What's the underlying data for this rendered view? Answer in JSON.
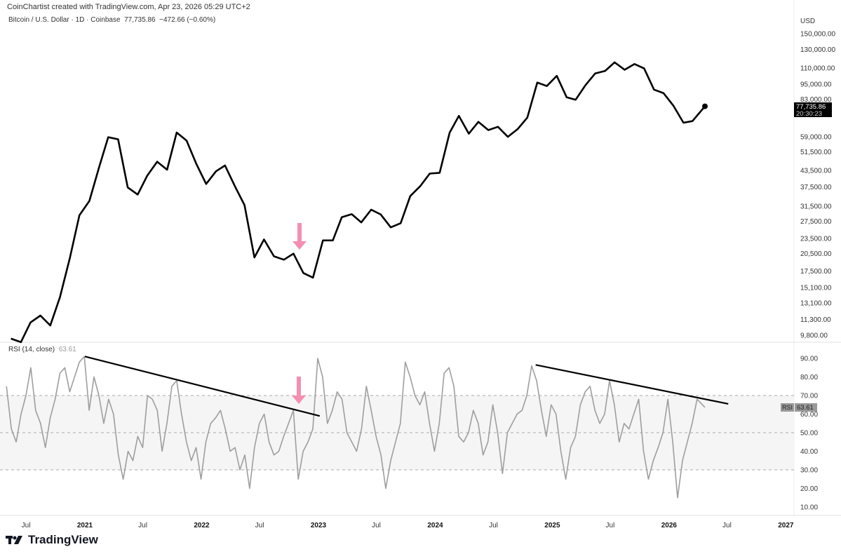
{
  "header": {
    "credit": "CoinChartist created with TradingView.com, Apr 23, 2026 05:29 UTC+2",
    "symbol": "Bitcoin / U.S. Dollar · 1D · Coinbase",
    "last": "77,735.86",
    "change": "−472.66 (−0.60%)"
  },
  "price_panel": {
    "currency": "USD",
    "last_label": "77,735.86",
    "countdown": "20:30:23"
  },
  "rsi_panel": {
    "title": "RSI (14, close)",
    "value": "63.61",
    "tag": "RSI"
  },
  "logo": "TradingView",
  "colors": {
    "price": "#000000",
    "rsi": "#9e9e9e",
    "arrow": "#f48fb1",
    "trendline": "#000000",
    "band": "#f5f5f5"
  },
  "chart_data": [
    {
      "type": "line",
      "title": "Bitcoin / U.S. Dollar · 1D · Coinbase",
      "y_scale": "log",
      "ylabel": "USD",
      "y_ticks": [
        "150,000.00",
        "130,000.00",
        "110,000.00",
        "95,000.00",
        "83,000.00",
        "59,000.00",
        "51,500.00",
        "43,500.00",
        "37,500.00",
        "31,500.00",
        "27,500.00",
        "23,500.00",
        "20,500.00",
        "17,500.00",
        "15,100.00",
        "13,100.00",
        "11,300.00",
        "9,800.00"
      ],
      "x_ticks": [
        "Jul",
        "2021",
        "Jul",
        "2022",
        "Jul",
        "2023",
        "Jul",
        "2024",
        "Jul",
        "2025",
        "Jul",
        "2026",
        "Jul",
        "2027"
      ],
      "x_start": "2020-05",
      "x_interval": "monthly",
      "values": [
        9500,
        9200,
        11000,
        11700,
        10700,
        13800,
        19700,
        29000,
        33000,
        45000,
        58800,
        57700,
        37300,
        35000,
        41500,
        47100,
        43800,
        61300,
        57000,
        46300,
        38500,
        43200,
        45500,
        37700,
        31800,
        19800,
        23300,
        20000,
        19400,
        20500,
        17200,
        16500,
        23100,
        23100,
        28500,
        29300,
        27200,
        30500,
        29200,
        26000,
        27000,
        34500,
        37700,
        42300,
        42600,
        61200,
        71300,
        60700,
        67500,
        62700,
        64600,
        59000,
        63300,
        70200,
        96400,
        93400,
        102400,
        84300,
        82500,
        94200,
        104600,
        107100,
        115700,
        108200,
        114000,
        109500,
        90400,
        87500,
        78000,
        67000,
        68000,
        77736
      ],
      "annotations": [
        {
          "type": "down-arrow",
          "date": "2022-11"
        }
      ]
    },
    {
      "type": "line",
      "title": "RSI (14, close)",
      "y_ticks": [
        90,
        80,
        70,
        60,
        50,
        40,
        30,
        20,
        10
      ],
      "bands": [
        30,
        50,
        70
      ],
      "x_start": "2020-05-01",
      "x_interval": "semi-monthly",
      "values": [
        75,
        52,
        45,
        60,
        70,
        85,
        62,
        55,
        42,
        58,
        68,
        82,
        85,
        72,
        80,
        88,
        91,
        62,
        80,
        70,
        55,
        68,
        60,
        38,
        25,
        40,
        35,
        48,
        42,
        70,
        68,
        62,
        40,
        55,
        75,
        78,
        60,
        45,
        35,
        42,
        25,
        45,
        55,
        58,
        62,
        52,
        40,
        42,
        30,
        38,
        20,
        42,
        55,
        60,
        45,
        38,
        40,
        48,
        55,
        62,
        25,
        40,
        45,
        52,
        90,
        80,
        55,
        62,
        72,
        68,
        50,
        45,
        40,
        52,
        75,
        62,
        48,
        38,
        20,
        35,
        45,
        55,
        88,
        80,
        70,
        65,
        72,
        55,
        40,
        55,
        82,
        85,
        75,
        48,
        45,
        50,
        62,
        55,
        38,
        45,
        65,
        50,
        28,
        50,
        55,
        60,
        62,
        70,
        86,
        78,
        62,
        48,
        65,
        60,
        40,
        25,
        42,
        48,
        65,
        72,
        75,
        62,
        55,
        60,
        78,
        65,
        45,
        55,
        52,
        60,
        68,
        40,
        25,
        35,
        42,
        50,
        68,
        45,
        15,
        35,
        45,
        55,
        68,
        63.61
      ],
      "trendlines": [
        {
          "from": [
            "2021-01-01",
            91
          ],
          "to": [
            "2023-01-05",
            59
          ]
        },
        {
          "from": [
            "2024-11-10",
            86.5
          ],
          "to": [
            "2026-07-05",
            65.5
          ]
        }
      ],
      "annotations": [
        {
          "type": "down-arrow",
          "date": "2022-11"
        }
      ]
    }
  ]
}
